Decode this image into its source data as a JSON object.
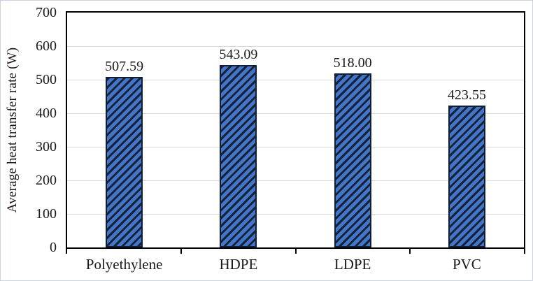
{
  "chart_data": {
    "type": "bar",
    "title": "",
    "xlabel": "",
    "ylabel": "Average heat transfer rate (W)",
    "categories": [
      "Polyethylene",
      "HDPE",
      "LDPE",
      "PVC"
    ],
    "values": [
      507.59,
      543.09,
      518.0,
      423.55
    ],
    "bar_labels": [
      "507.59",
      "543.09",
      "518.00",
      "423.55"
    ],
    "ylim": [
      0,
      700
    ],
    "ytick_step": 100,
    "yticks": [
      0,
      100,
      200,
      300,
      400,
      500,
      600,
      700
    ],
    "grid": "horizontal",
    "legend": "none",
    "bar_hatch_style": "diagonal-forward-slash",
    "colors": {
      "bar_fill": "#4575C5",
      "bar_hatch": "#13213C",
      "bar_border": "#101E38",
      "gridline": "#D9D9D9",
      "axis": "#000000",
      "text": "#1A1A1A",
      "frame": "#C9D3E4"
    }
  }
}
